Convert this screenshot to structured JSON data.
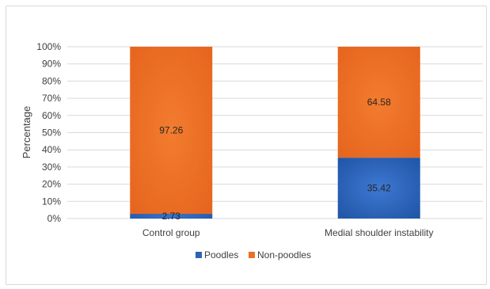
{
  "chart_data": {
    "type": "bar",
    "stacked": true,
    "percent_stacked": true,
    "title": "",
    "xlabel": "",
    "ylabel": "Percentage",
    "ylim": [
      0,
      100
    ],
    "y_ticks": [
      "0%",
      "10%",
      "20%",
      "30%",
      "40%",
      "50%",
      "60%",
      "70%",
      "80%",
      "90%",
      "100%"
    ],
    "y_tick_values": [
      0,
      10,
      20,
      30,
      40,
      50,
      60,
      70,
      80,
      90,
      100
    ],
    "grid": true,
    "legend_position": "bottom",
    "categories": [
      "Control group",
      "Medial shoulder instability"
    ],
    "series": [
      {
        "name": "Poodles",
        "color": "#2e62b5",
        "values": [
          2.73,
          35.42
        ],
        "labels": [
          "2.73",
          "35.42"
        ]
      },
      {
        "name": "Non-poodles",
        "color": "#ec6f27",
        "values": [
          97.26,
          64.58
        ],
        "labels": [
          "97.26",
          "64.58"
        ]
      }
    ]
  }
}
